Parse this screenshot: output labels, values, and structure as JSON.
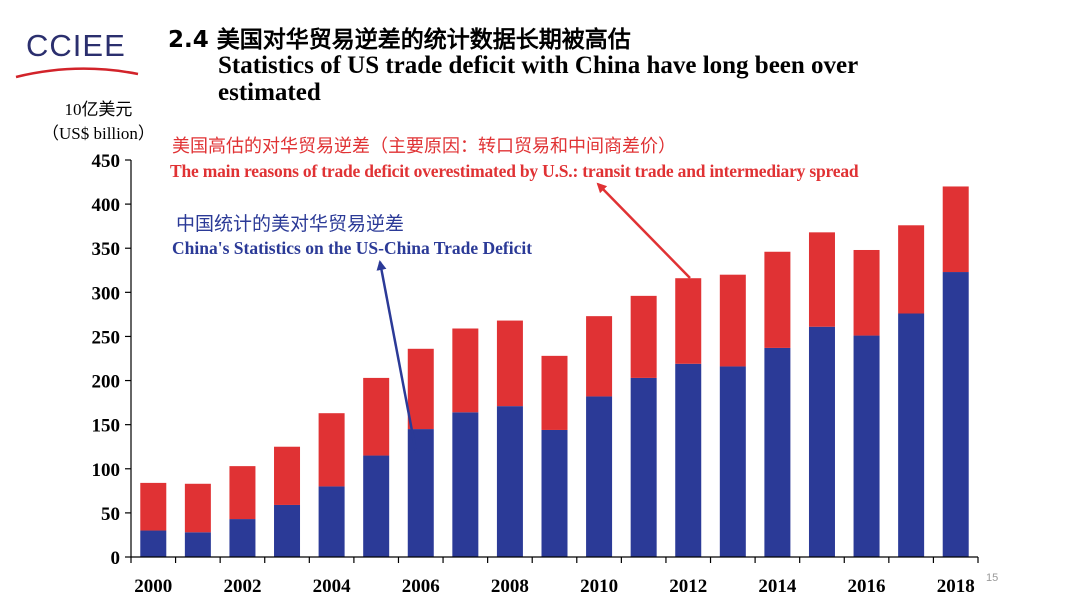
{
  "logo": {
    "text": "CCIEE"
  },
  "title": {
    "cn": "2.4  美国对华贸易逆差的统计数据长期被高估",
    "en": "Statistics of US trade deficit with China have long been over estimated"
  },
  "unit": {
    "cn": "10亿美元",
    "en": "（US$ billion）"
  },
  "annotations": {
    "overestimate_cn": "美国高估的对华贸易逆差（主要原因：转口贸易和中间商差价）",
    "overestimate_en": "The main reasons of trade deficit overestimated by U.S.: transit trade and intermediary spread",
    "china_stats_cn": "中国统计的美对华贸易逆差",
    "china_stats_en": "China's Statistics on the US-China Trade Deficit"
  },
  "page_number": "15",
  "colors": {
    "china_series": "#2b3a97",
    "overestimate_series": "#e03234"
  },
  "chart_data": {
    "type": "bar",
    "stacked": true,
    "categories": [
      "2000",
      "2001",
      "2002",
      "2003",
      "2004",
      "2005",
      "2006",
      "2007",
      "2008",
      "2009",
      "2010",
      "2011",
      "2012",
      "2013",
      "2014",
      "2015",
      "2016",
      "2017",
      "2018"
    ],
    "x_tick_labels": [
      "2000",
      "",
      "2002",
      "",
      "2004",
      "",
      "2006",
      "",
      "2008",
      "",
      "2010",
      "",
      "2012",
      "",
      "2014",
      "",
      "2016",
      "",
      "2018"
    ],
    "series": [
      {
        "name": "China's Statistics on the US-China Trade Deficit",
        "color": "#2b3a97",
        "values": [
          30,
          28,
          43,
          59,
          80,
          115,
          145,
          164,
          171,
          144,
          182,
          203,
          219,
          216,
          237,
          261,
          251,
          276,
          323
        ]
      },
      {
        "name": "The main reasons of trade deficit overestimated by U.S.: transit trade and intermediary spread",
        "color": "#e03234",
        "values": [
          54,
          55,
          60,
          66,
          83,
          88,
          91,
          95,
          97,
          84,
          91,
          93,
          97,
          104,
          109,
          107,
          97,
          100,
          97
        ]
      }
    ],
    "ylim": [
      0,
      450
    ],
    "yticks": [
      0,
      50,
      100,
      150,
      200,
      250,
      300,
      350,
      400,
      450
    ],
    "grid": false,
    "legend": "none"
  }
}
